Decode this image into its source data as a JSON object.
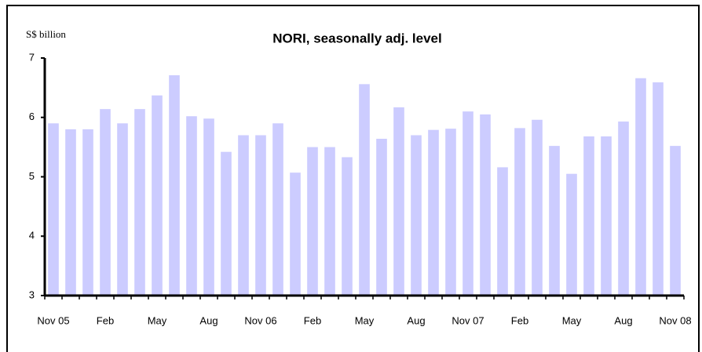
{
  "chart_data": {
    "type": "bar",
    "title": "NORI, seasonally adj. level",
    "y_label": "S$ billion",
    "categories": [
      "Nov 05",
      null,
      null,
      "Feb",
      null,
      null,
      "May",
      null,
      null,
      "Aug",
      null,
      null,
      "Nov 06",
      null,
      null,
      "Feb",
      null,
      null,
      "May",
      null,
      null,
      "Aug",
      null,
      null,
      "Nov 07",
      null,
      null,
      "Feb",
      null,
      null,
      "May",
      null,
      null,
      "Aug",
      null,
      null,
      "Nov 08"
    ],
    "values": [
      5.9,
      5.8,
      5.8,
      6.14,
      5.9,
      6.14,
      6.37,
      6.71,
      6.02,
      5.98,
      5.42,
      5.7,
      5.7,
      5.9,
      5.07,
      5.5,
      5.5,
      5.33,
      6.56,
      5.64,
      6.17,
      5.7,
      5.79,
      5.81,
      6.1,
      6.05,
      5.16,
      5.82,
      5.96,
      5.52,
      5.05,
      5.68,
      5.68,
      5.93,
      6.66,
      6.59,
      5.52
    ],
    "color": "#ccccff",
    "ylim": [
      3,
      7
    ],
    "yticks": [
      3,
      4,
      5,
      6,
      7
    ],
    "grid": false
  }
}
